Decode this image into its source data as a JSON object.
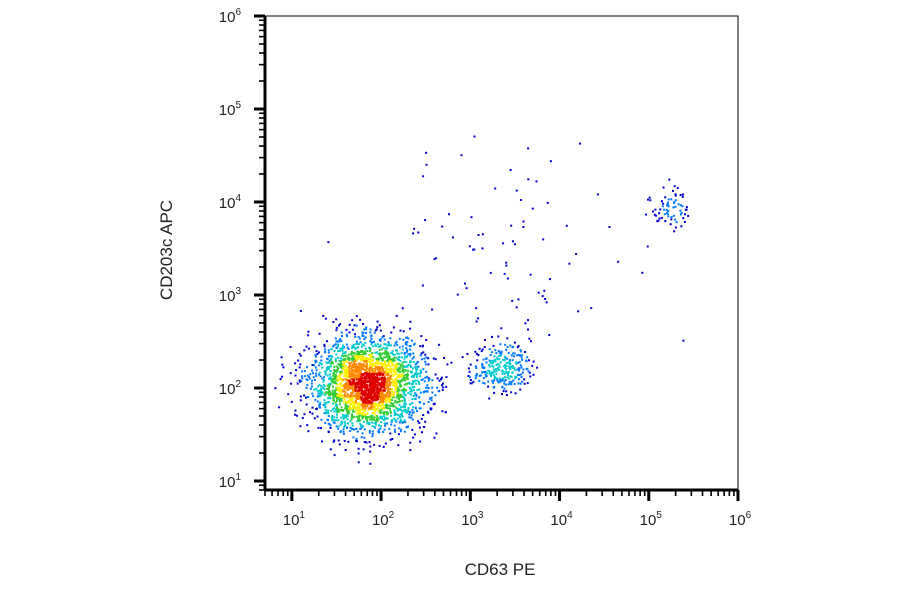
{
  "chart_data": {
    "type": "scatter",
    "subtype": "flow-cytometry density dot plot",
    "xlabel": "CD63 PE",
    "ylabel": "CD203c APC",
    "xscale": "log",
    "yscale": "log",
    "xlim": [
      5,
      1000000
    ],
    "ylim": [
      8,
      1000000
    ],
    "x_ticks": [
      {
        "base": "10",
        "exp": "1"
      },
      {
        "base": "10",
        "exp": "2"
      },
      {
        "base": "10",
        "exp": "3"
      },
      {
        "base": "10",
        "exp": "4"
      },
      {
        "base": "10",
        "exp": "5"
      },
      {
        "base": "10",
        "exp": "6"
      }
    ],
    "y_ticks": [
      {
        "base": "10",
        "exp": "1"
      },
      {
        "base": "10",
        "exp": "2"
      },
      {
        "base": "10",
        "exp": "3"
      },
      {
        "base": "10",
        "exp": "4"
      },
      {
        "base": "10",
        "exp": "5"
      },
      {
        "base": "10",
        "exp": "6"
      }
    ],
    "grid": false,
    "legend": "none",
    "density_colors": [
      "#0000cc",
      "#0077ff",
      "#00cccc",
      "#33cc33",
      "#ffee00",
      "#ff8800",
      "#dd0000"
    ],
    "populations": [
      {
        "center_x": 70,
        "center_y": 110,
        "spread_log10": [
          0.32,
          0.25
        ],
        "events": 2600
      },
      {
        "center_x": 2200,
        "center_y": 170,
        "spread_log10": [
          0.16,
          0.13
        ],
        "events": 260
      },
      {
        "center_x": 170000,
        "center_y": 9000,
        "spread_log10": [
          0.1,
          0.12
        ],
        "events": 70
      },
      {
        "center_x": 4000,
        "center_y": 3000,
        "spread_log10": [
          0.75,
          0.55
        ],
        "events": 80
      }
    ]
  }
}
